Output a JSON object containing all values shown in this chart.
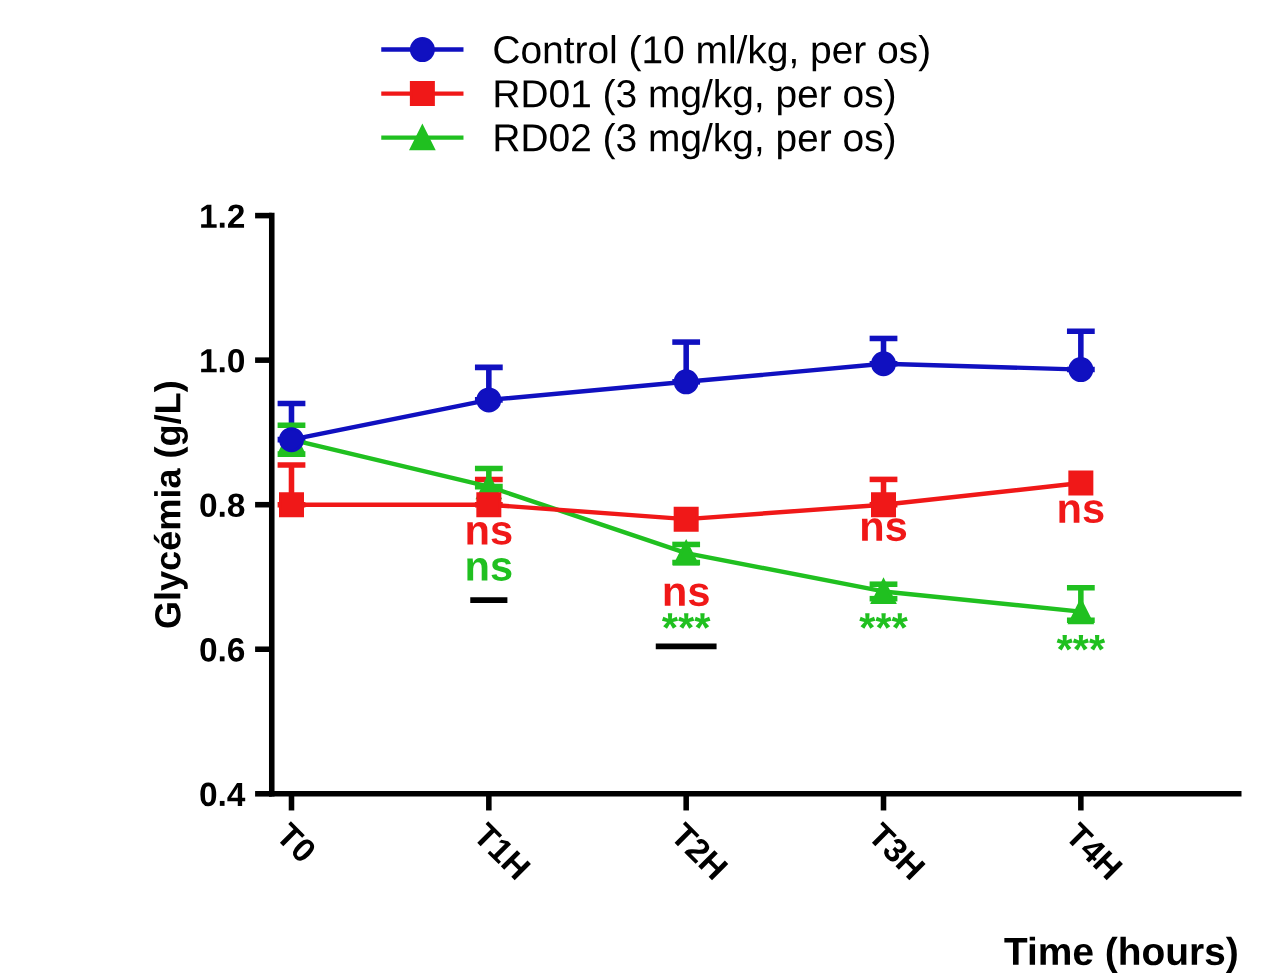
{
  "chart_data": {
    "type": "line",
    "xlabel": "Time (hours)",
    "ylabel": "Glycémia (g/L)",
    "categories": [
      "T0",
      "T1H",
      "T2H",
      "T3H",
      "T4H"
    ],
    "series": [
      {
        "name": "Control (10 ml/kg, per os)",
        "color": "#1010c0",
        "marker": "circle",
        "values": [
          0.89,
          0.945,
          0.97,
          0.995,
          0.987
        ],
        "errors": [
          [
            0.89,
            0.94
          ],
          [
            0.945,
            0.99
          ],
          [
            0.97,
            1.025
          ],
          [
            0.995,
            1.03
          ],
          [
            0.987,
            1.04
          ]
        ]
      },
      {
        "name": "RD01 (3 mg/kg, per os)",
        "color": "#f01818",
        "marker": "square",
        "values": [
          0.8,
          0.8,
          0.78,
          0.8,
          0.83
        ],
        "errors": [
          [
            0.8,
            0.855
          ],
          [
            0.8,
            0.835
          ],
          null,
          [
            0.8,
            0.835
          ],
          null
        ]
      },
      {
        "name": "RD02 (3 mg/kg, per os)",
        "color": "#20c020",
        "marker": "triangle",
        "values": [
          0.89,
          0.825,
          0.733,
          0.68,
          0.652
        ],
        "errors": [
          [
            0.87,
            0.91
          ],
          [
            0.825,
            0.85
          ],
          [
            0.72,
            0.745
          ],
          [
            0.67,
            0.69
          ],
          [
            0.64,
            0.685
          ]
        ]
      }
    ],
    "annotations": [
      "ns",
      "ns",
      "ns",
      "***",
      "ns",
      "***",
      "ns",
      "***"
    ],
    "ylim": [
      0.4,
      1.2
    ],
    "yticks": [
      {
        "value": 0.4,
        "label": "0.4"
      },
      {
        "value": 0.6,
        "label": "0.6"
      },
      {
        "value": 0.8,
        "label": "0.8"
      },
      {
        "value": 1.0,
        "label": "1.0"
      },
      {
        "value": 1.2,
        "label": "1.2"
      }
    ],
    "grid": false,
    "legend": "top",
    "line_style": "solid"
  }
}
